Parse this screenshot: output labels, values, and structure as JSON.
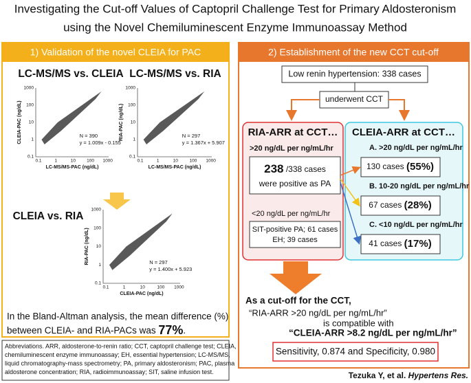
{
  "title": {
    "line1": "Investigating the Cut-off Values of Captopril Challenge Test for Primary Aldosteronism",
    "line2": "using the Novel Chemiluminescent Enzyme Immunoassay Method"
  },
  "left_panel": {
    "header": "1) Validation of the novel CLEIA for PAC",
    "plots": [
      {
        "title": "LC-MS/MS vs. CLEIA",
        "y_label": "CLEIA-PAC (ng/dL)",
        "x_label": "LC-MS/MS-PAC (ng/dL)",
        "y_ticks": [
          "1000",
          "100",
          "10",
          "1",
          "0.1"
        ],
        "x_ticks": [
          "0.1",
          "1",
          "10",
          "100",
          "1000"
        ],
        "n": "N = 390",
        "equation": "y = 1.009x - 0.155"
      },
      {
        "title": "LC-MS/MS vs. RIA",
        "y_label": "RIA-PAC (ng/dL)",
        "x_label": "LC-MS/MS-PAC (ng/dL)",
        "y_ticks": [
          "1000",
          "100",
          "10",
          "1",
          "0.1"
        ],
        "x_ticks": [
          "0.1",
          "1",
          "10",
          "100",
          "1000"
        ],
        "n": "N = 297",
        "equation": "y = 1.367x + 5.907"
      },
      {
        "title": "CLEIA vs. RIA",
        "y_label": "RIA-PAC (ng/dL)",
        "x_label": "CLEIA-PAC (ng/dL)",
        "y_ticks": [
          "1000",
          "100",
          "10",
          "1",
          "0.1"
        ],
        "x_ticks": [
          "0.1",
          "1",
          "10",
          "100",
          "1000"
        ],
        "n": "N = 297",
        "equation": "y = 1.400x + 5.923"
      }
    ],
    "summary": {
      "line1": "In the Bland-Altman analysis, the mean difference (%)",
      "line2": "between CLEIA- and RIA-PACs was ",
      "value": "77%",
      "end": "."
    }
  },
  "abbreviations": [
    "Abbreviations. ARR, aldosterone-to-renin ratio; CCT, captopril challenge test; CLEIA,",
    "chemiluminescent enzyme immunoassay; EH, essential hypertension; LC-MS/MS,",
    "liquid chromatography-mass spectrometry; PA, primary aldosteronism; PAC, plasma",
    "aldosterone concentration; RIA, radioimmunoassay; SIT, saline infusion test."
  ],
  "right_panel": {
    "header": "2) Establishment of the new CCT cut-off",
    "population": "Low renin hypertension: 338 cases",
    "procedure": "underwent CCT",
    "ria": {
      "title": "RIA-ARR at CCT…",
      "high_label": ">20 ng/dL per ng/mL/hr",
      "positive_count": "238",
      "positive_total": " /338 cases",
      "positive_text": "were positive as PA",
      "low_label": "<20 ng/dL per ng/mL/hr",
      "low_line1": "SIT-positive PA; 61 cases",
      "low_line2": "EH; 39 cases"
    },
    "cleia": {
      "title": "CLEIA-ARR at CCT…",
      "groups": [
        {
          "label": "A. >20 ng/dL per ng/mL/hr",
          "count": "130 cases ",
          "percent": "(55%)"
        },
        {
          "label": "B. 10-20 ng/dL per ng/mL/hr",
          "count": "67 cases ",
          "percent": "(28%)"
        },
        {
          "label": "C. <10 ng/dL per ng/mL/hr",
          "count": "41 cases ",
          "percent": "(17%)"
        }
      ]
    },
    "conclusion": [
      "As a cut-off for the CCT,",
      "“RIA-ARR >20 ng/dL per ng/mL/hr”",
      "is compatible with",
      "“CLEIA-ARR >8.2 ng/dL per ng/mL/hr”"
    ],
    "result": "Sensitivity, 0.874 and Specificity, 0.980"
  },
  "citation": {
    "authors": "Tezuka Y, et al. ",
    "journal": "Hypertens Res."
  }
}
